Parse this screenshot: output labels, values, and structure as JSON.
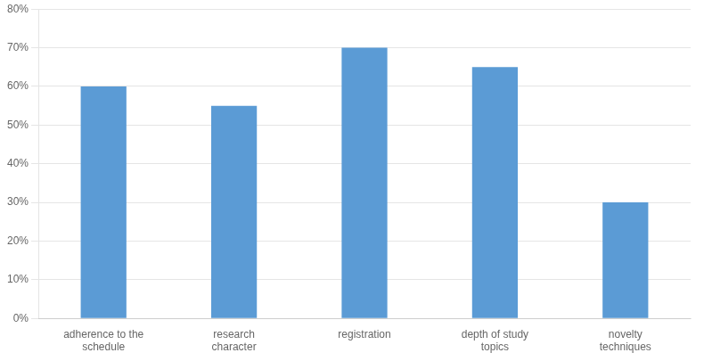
{
  "chart_data": {
    "type": "bar",
    "categories": [
      "adherence to the\nschedule",
      "research\ncharacter",
      "registration",
      "depth of study\ntopics",
      "novelty\ntechniques"
    ],
    "values": [
      0.6,
      0.55,
      0.7,
      0.65,
      0.3
    ],
    "color": "#5B9BD5",
    "ylim": [
      0,
      0.8
    ],
    "yticks": [
      {
        "value": 0.0,
        "label": "0%"
      },
      {
        "value": 0.1,
        "label": "10%"
      },
      {
        "value": 0.2,
        "label": "20%"
      },
      {
        "value": 0.3,
        "label": "30%"
      },
      {
        "value": 0.4,
        "label": "40%"
      },
      {
        "value": 0.5,
        "label": "50%"
      },
      {
        "value": 0.6,
        "label": "60%"
      },
      {
        "value": 0.7,
        "label": "70%"
      },
      {
        "value": 0.8,
        "label": "80%"
      }
    ],
    "grid": true
  }
}
